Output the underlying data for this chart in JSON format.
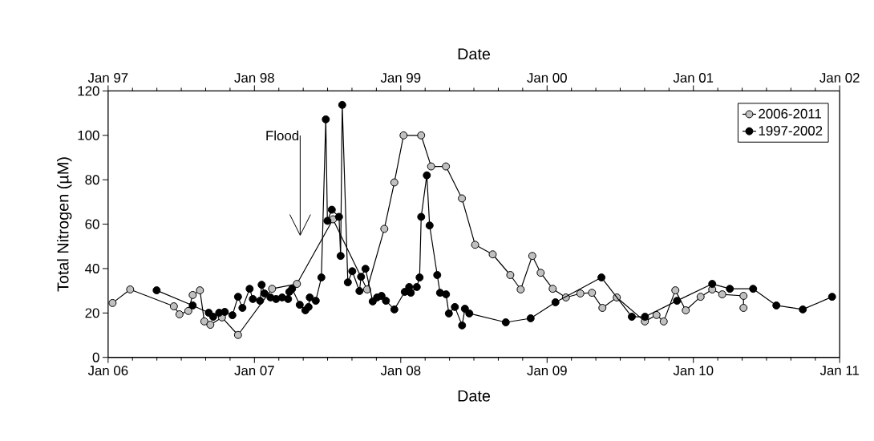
{
  "chart_data": {
    "type": "line",
    "xlabel": "Date",
    "x2label": "Date",
    "ylabel": "Total Nitrogen (µM)",
    "xlim": [
      "2006-01-01",
      "2011-01-01"
    ],
    "xticks": [
      {
        "value": "2006-01-01",
        "label": "Jan 06"
      },
      {
        "value": "2007-01-01",
        "label": "Jan 07"
      },
      {
        "value": "2008-01-01",
        "label": "Jan 08"
      },
      {
        "value": "2009-01-01",
        "label": "Jan 09"
      },
      {
        "value": "2010-01-01",
        "label": "Jan 10"
      },
      {
        "value": "2011-01-01",
        "label": "Jan 11"
      }
    ],
    "x2lim": [
      "1997-01-01",
      "2002-01-01"
    ],
    "x2ticks": [
      {
        "value": "1997-01-01",
        "label": "Jan 97"
      },
      {
        "value": "1998-01-01",
        "label": "Jan 98"
      },
      {
        "value": "1999-01-01",
        "label": "Jan 99"
      },
      {
        "value": "2000-01-01",
        "label": "Jan 00"
      },
      {
        "value": "2001-01-01",
        "label": "Jan 01"
      },
      {
        "value": "2002-01-01",
        "label": "Jan 02"
      }
    ],
    "ylim": [
      0,
      120
    ],
    "yticks": [
      0,
      20,
      40,
      60,
      80,
      100,
      120
    ],
    "marker": "circle",
    "legend": "top right",
    "annotations": [
      "Flood"
    ],
    "series": [
      {
        "name": "2006-2011",
        "color": "#c0c0c0",
        "x": [
          "2006-01-12",
          "2006-02-25",
          "2006-06-14",
          "2006-06-28",
          "2006-07-20",
          "2006-07-31",
          "2006-08-18",
          "2006-08-29",
          "2006-09-13",
          "2006-10-12",
          "2006-11-21",
          "2007-02-14",
          "2007-04-17",
          "2007-07-16",
          "2007-10-09",
          "2007-11-21",
          "2007-12-16",
          "2008-01-08",
          "2008-02-21",
          "2008-03-17",
          "2008-04-23",
          "2008-06-02",
          "2008-07-05",
          "2008-08-18",
          "2008-10-01",
          "2008-10-27",
          "2008-11-25",
          "2008-12-16",
          "2009-01-15",
          "2009-02-17",
          "2009-03-25",
          "2009-04-23",
          "2009-05-19",
          "2009-06-24",
          "2009-09-02",
          "2009-10-01",
          "2009-10-19",
          "2009-11-17",
          "2009-12-13",
          "2010-01-19",
          "2010-02-17",
          "2010-03-14",
          "2010-05-06",
          "2010-05-06"
        ],
        "values": [
          24.5,
          30.6,
          23.0,
          19.4,
          20.9,
          28.1,
          30.2,
          16.2,
          14.7,
          18.0,
          10.1,
          30.9,
          33.1,
          62.2,
          30.6,
          57.9,
          78.8,
          100,
          100,
          86,
          86,
          71.6,
          50.7,
          46.4,
          37.1,
          30.6,
          45.7,
          38.1,
          30.9,
          27.0,
          28.8,
          29.1,
          22.3,
          27.0,
          16.2,
          19.1,
          16.2,
          30.2,
          21.2,
          27.3,
          30.6,
          28.4,
          27.7,
          22.3
        ]
      },
      {
        "name": "1997-2002",
        "color": "#000000",
        "axis": "x2",
        "x": [
          "1997-05-02",
          "1997-07-31",
          "1997-09-09",
          "1997-09-20",
          "1997-10-05",
          "1997-10-19",
          "1997-11-07",
          "1997-11-21",
          "1997-12-02",
          "1997-12-20",
          "1997-12-28",
          "1998-01-15",
          "1998-01-19",
          "1998-01-26",
          "1998-02-10",
          "1998-02-24",
          "1998-03-11",
          "1998-03-26",
          "1998-03-29",
          "1998-04-05",
          "1998-04-24",
          "1998-05-08",
          "1998-05-16",
          "1998-05-19",
          "1998-06-03",
          "1998-06-17",
          "1998-06-28",
          "1998-07-02",
          "1998-07-13",
          "1998-07-31",
          "1998-08-04",
          "1998-08-08",
          "1998-08-22",
          "1998-09-02",
          "1998-09-20",
          "1998-09-24",
          "1998-10-05",
          "1998-10-23",
          "1998-11-03",
          "1998-11-14",
          "1998-11-25",
          "1998-12-16",
          "1999-01-11",
          "1999-01-22",
          "1999-01-26",
          "1999-02-10",
          "1999-02-17",
          "1999-02-21",
          "1999-03-07",
          "1999-03-14",
          "1999-04-02",
          "1999-04-09",
          "1999-04-24",
          "1999-05-01",
          "1999-05-16",
          "1999-06-03",
          "1999-06-10",
          "1999-06-21",
          "1999-09-20",
          "1999-11-21",
          "2000-01-22",
          "2000-05-16",
          "2000-07-31",
          "2000-09-02",
          "2000-11-21",
          "2001-02-17",
          "2001-04-02",
          "2001-05-30",
          "2001-07-27",
          "2001-10-01",
          "2001-12-13"
        ],
        "values": [
          30.2,
          23.4,
          20.1,
          18.3,
          20.1,
          20.5,
          19.0,
          27.3,
          22.3,
          30.9,
          26.3,
          25.5,
          32.7,
          28.8,
          27.0,
          26.3,
          27.0,
          26.3,
          29.5,
          30.9,
          23.7,
          21.2,
          22.7,
          27.0,
          25.5,
          36.0,
          107.2,
          61.5,
          66.5,
          63.3,
          45.7,
          113.7,
          33.8,
          38.8,
          29.9,
          36.3,
          39.9,
          25.2,
          27.0,
          27.7,
          25.5,
          21.6,
          29.5,
          31.7,
          29.1,
          31.7,
          36.0,
          63.3,
          82.0,
          59.4,
          37.1,
          29.1,
          28.4,
          19.8,
          22.7,
          14.4,
          21.9,
          19.8,
          15.8,
          17.6,
          24.8,
          36.0,
          18.3,
          18.3,
          25.5,
          33.1,
          30.9,
          30.9,
          23.4,
          21.6,
          27.3
        ]
      }
    ]
  }
}
